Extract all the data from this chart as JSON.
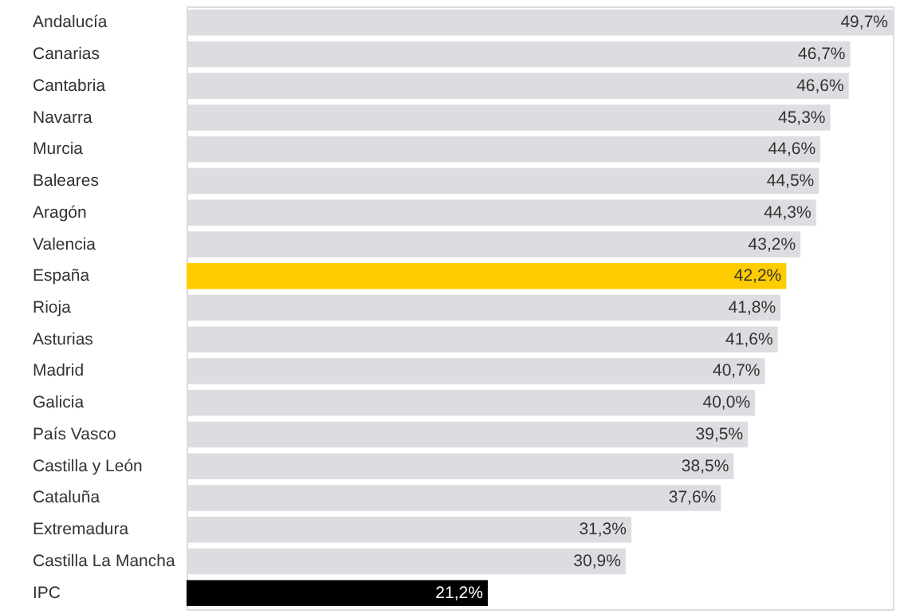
{
  "chart_data": {
    "type": "bar",
    "orientation": "horizontal",
    "categories": [
      "Andalucía",
      "Canarias",
      "Cantabria",
      "Navarra",
      "Murcia",
      "Baleares",
      "Aragón",
      "Valencia",
      "España",
      "Rioja",
      "Asturias",
      "Madrid",
      "Galicia",
      "País Vasco",
      "Castilla y León",
      "Cataluña",
      "Extremadura",
      "Castilla La Mancha",
      "IPC"
    ],
    "values": [
      49.7,
      46.7,
      46.6,
      45.3,
      44.6,
      44.5,
      44.3,
      43.2,
      42.2,
      41.8,
      41.6,
      40.7,
      40.0,
      39.5,
      38.5,
      37.6,
      31.3,
      30.9,
      21.2
    ],
    "value_labels": [
      "49,7%",
      "46,7%",
      "46,6%",
      "45,3%",
      "44,6%",
      "44,5%",
      "44,3%",
      "43,2%",
      "42,2%",
      "41,8%",
      "41,6%",
      "40,7%",
      "40,0%",
      "39,5%",
      "38,5%",
      "37,6%",
      "31,3%",
      "30,9%",
      "21,2%"
    ],
    "colors": [
      "#dcdde0",
      "#dcdde0",
      "#dcdde0",
      "#dcdde0",
      "#dcdde0",
      "#dcdde0",
      "#dcdde0",
      "#dcdde0",
      "#ffcc00",
      "#dcdde0",
      "#dcdde0",
      "#dcdde0",
      "#dcdde0",
      "#dcdde0",
      "#dcdde0",
      "#dcdde0",
      "#dcdde0",
      "#dcdde0",
      "#000000"
    ],
    "grid": false
  }
}
